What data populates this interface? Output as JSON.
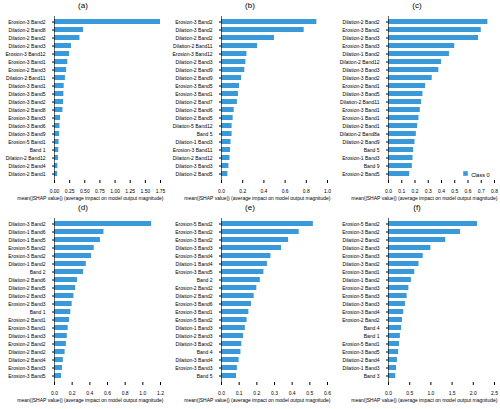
{
  "chart_data": [
    {
      "type": "bar",
      "orientation": "horizontal",
      "title": "(a)",
      "xlabel": "mean(|SHAP value|) (average impact on model output magnitude)",
      "categories": [
        "Erosion-3 Band2",
        "Dilation-2 Band8",
        "Dilation-2 Band2",
        "Dilation-2 Band3",
        "Erosion-3 Band12",
        "Erosion-3 Band1",
        "Erosion-2 Band3",
        "Dilation-2 Band11",
        "Dilation-3 Band1",
        "Dilation-3 Band5",
        "Dilation-3 Band2",
        "Dilation-2 Band8",
        "Erosion-3 Band3",
        "Dilation-3 Band6",
        "Dilation-3 Band9",
        "Erosion-5 Band1",
        "Band 1",
        "Dilation-2 Band12",
        "Dilation-2 Band4",
        "Dilation-2 Band1"
      ],
      "values": [
        1.75,
        0.48,
        0.42,
        0.28,
        0.25,
        0.22,
        0.2,
        0.18,
        0.16,
        0.155,
        0.15,
        0.14,
        0.1,
        0.09,
        0.085,
        0.075,
        0.07,
        0.065,
        0.055,
        0.05
      ],
      "color": "#3a9ad9",
      "xlim": [
        0,
        1.75
      ],
      "xticks": [
        {
          "value": 0,
          "label": "0.00"
        },
        {
          "value": 0.25,
          "label": "0.25"
        },
        {
          "value": 0.5,
          "label": "0.50"
        },
        {
          "value": 0.75,
          "label": "0.75"
        },
        {
          "value": 1,
          "label": "1.00"
        },
        {
          "value": 1.25,
          "label": "1.25"
        },
        {
          "value": 1.5,
          "label": "1.50"
        },
        {
          "value": 1.75,
          "label": "1.75"
        }
      ],
      "grid": false
    },
    {
      "type": "bar",
      "orientation": "horizontal",
      "title": "(b)",
      "xlabel": "mean(|SHAP value|) (average impact on model output magnitude)",
      "categories": [
        "Erosion-3 Band2",
        "Dilation-3 Band2",
        "Dilation-2 Band2",
        "Dilation-2 Band11",
        "Erosion-3 Band12",
        "Dilation-2 Band3",
        "Dilation-2 Band9",
        "Dilation-2 Band9",
        "Erosion-3 Band5",
        "Erosion-3 Band1",
        "Dilation-2 Band7",
        "Dilation-2 Band6",
        "Dilation-2 Band5",
        "Dilation-5 Band12",
        "Band 5",
        "Dilation-1 Band3",
        "Erosion-3 Band11",
        "Dilation-2 Band12",
        "Dilation-3 Band3",
        "Dilation-2 Band5"
      ],
      "values": [
        0.9,
        0.78,
        0.5,
        0.34,
        0.24,
        0.23,
        0.22,
        0.19,
        0.17,
        0.16,
        0.15,
        0.12,
        0.11,
        0.1,
        0.1,
        0.09,
        0.085,
        0.08,
        0.07,
        0.06
      ],
      "color": "#3a9ad9",
      "xlim": [
        0,
        1.0
      ],
      "xticks": [
        {
          "value": 0,
          "label": "0.0"
        },
        {
          "value": 0.2,
          "label": "0.2"
        },
        {
          "value": 0.4,
          "label": "0.4"
        },
        {
          "value": 0.6,
          "label": "0.6"
        },
        {
          "value": 0.8,
          "label": "0.8"
        },
        {
          "value": 1,
          "label": "1.0"
        }
      ],
      "grid": false
    },
    {
      "type": "bar",
      "orientation": "horizontal",
      "title": "(c)",
      "xlabel": "mean(|SHAP value|) (average impact on model output magnitude)",
      "categories": [
        "Dilation-2 Band2",
        "Erosion-3 Band2",
        "Dilation-2 Band3",
        "Erosion-3 Band3",
        "Dilation-1 Band2",
        "Dilation-2 Band12",
        "Dilation-3 Band3",
        "Dilation-3 Band2",
        "Erosion-2 Band1",
        "Dilation-3 Band5",
        "Dilation-2 Band11",
        "Erosion-3 Band1",
        "Erosion-1 Band1",
        "Dilation-2 Band1",
        "Dilation-2 Band8a",
        "Dilation-2 Band9",
        "Band 5",
        "Erosion-1 Band3",
        "Band 9",
        "Erosion-2 Band5"
      ],
      "series": [
        {
          "name": "Class 0",
          "color": "#3a9ad9",
          "values": [
            0.75,
            0.7,
            0.68,
            0.5,
            0.46,
            0.4,
            0.38,
            0.33,
            0.28,
            0.26,
            0.25,
            0.24,
            0.23,
            0.22,
            0.21,
            0.2,
            0.19,
            0.185,
            0.18,
            0.16
          ]
        }
      ],
      "legend": "lower right",
      "xlim": [
        0,
        0.8
      ],
      "xticks": [
        {
          "value": 0,
          "label": "0.0"
        },
        {
          "value": 0.1,
          "label": "0.1"
        },
        {
          "value": 0.2,
          "label": "0.2"
        },
        {
          "value": 0.3,
          "label": "0.3"
        },
        {
          "value": 0.4,
          "label": "0.4"
        },
        {
          "value": 0.5,
          "label": "0.5"
        },
        {
          "value": 0.6,
          "label": "0.6"
        },
        {
          "value": 0.7,
          "label": "0.7"
        },
        {
          "value": 0.8,
          "label": "0.8"
        }
      ],
      "grid": false
    },
    {
      "type": "bar",
      "orientation": "horizontal",
      "title": "(d)",
      "xlabel": "mean(|SHAP value|) (average impact on model output magnitude)",
      "categories": [
        "Dilation-3 Band2",
        "Dilation-1 Band6",
        "Dilation-1 Band5",
        "Erosion-5 Band2",
        "Erosion-3 Band2",
        "Dilation-1 Band2",
        "Band 2",
        "Dilation-2 Band6",
        "Dilation-2 Band5",
        "Dilation-2 Band3",
        "Erosion-2 Band3",
        "Band 1",
        "Erosion-2 Band1",
        "Erosion-3 Band1",
        "Dilation-1 Band3",
        "Erosion-2 Band2",
        "Dilation-2 Band2",
        "Dilation-2 Band4",
        "Erosion-3 Band3",
        "Erosion-3 Band5"
      ],
      "values": [
        1.1,
        0.56,
        0.52,
        0.45,
        0.42,
        0.36,
        0.33,
        0.26,
        0.24,
        0.22,
        0.2,
        0.185,
        0.17,
        0.155,
        0.145,
        0.135,
        0.12,
        0.1,
        0.09,
        0.08
      ],
      "color": "#3a9ad9",
      "xlim": [
        0,
        1.2
      ],
      "xticks": [
        {
          "value": 0,
          "label": "0.0"
        },
        {
          "value": 0.2,
          "label": "0.2"
        },
        {
          "value": 0.4,
          "label": "0.4"
        },
        {
          "value": 0.6,
          "label": "0.6"
        },
        {
          "value": 0.8,
          "label": "0.8"
        },
        {
          "value": 1,
          "label": "1.0"
        },
        {
          "value": 1.2,
          "label": "1.2"
        }
      ],
      "grid": false
    },
    {
      "type": "bar",
      "orientation": "horizontal",
      "title": "(e)",
      "xlabel": "mean(|SHAP value|) (average impact on model output magnitude)",
      "categories": [
        "Erosion-5 Band2",
        "Erosion-3 Band2",
        "Erosion-3 Band2",
        "Dilation-3 Band3",
        "Erosion-3 Band4",
        "Dilation-1 Band4",
        "Erosion-3 Band5",
        "Band 2",
        "Erosion-2 Band2",
        "Dilation-2 Band2",
        "Erosion-3 Band6",
        "Erosion-3 Band1",
        "Erosion-5 Band2",
        "Dilation-1 Band3",
        "Dilation-2 Band3",
        "Dilation-3 Band2",
        "Band 4",
        "Dilation-3 Band4",
        "Erosion-3 Band3",
        "Band 5"
      ],
      "values": [
        0.52,
        0.44,
        0.38,
        0.34,
        0.28,
        0.26,
        0.24,
        0.22,
        0.2,
        0.185,
        0.17,
        0.155,
        0.145,
        0.135,
        0.125,
        0.115,
        0.11,
        0.1,
        0.09,
        0.085
      ],
      "color": "#3a9ad9",
      "xlim": [
        0,
        0.6
      ],
      "xticks": [
        {
          "value": 0,
          "label": "0.0"
        },
        {
          "value": 0.1,
          "label": "0.1"
        },
        {
          "value": 0.2,
          "label": "0.2"
        },
        {
          "value": 0.3,
          "label": "0.3"
        },
        {
          "value": 0.4,
          "label": "0.4"
        },
        {
          "value": 0.5,
          "label": "0.5"
        },
        {
          "value": 0.6,
          "label": "0.6"
        }
      ],
      "grid": false
    },
    {
      "type": "bar",
      "orientation": "horizontal",
      "title": "(f)",
      "xlabel": "mean(|SHAP value|) (average impact on model output magnitude)",
      "categories": [
        "Erosion-5 Band2",
        "Erosion-3 Band2",
        "Dilation-2 Band2",
        "Dilation-2 Band3",
        "Erosion-3 Band3",
        "Dilation-3 Band2",
        "Erosion-3 Band1",
        "Dilation-1 Band2",
        "Erosion-2 Band3",
        "Erosion-5 Band3",
        "Dilation-3 Band3",
        "Erosion-3 Band4",
        "Erosion-2 Band2",
        "Band 4",
        "Band 1",
        "Erosion-5 Band1",
        "Erosion-3 Band5",
        "Dilation-2 Band4",
        "Dilation-1 Band3",
        "Band 3"
      ],
      "values": [
        2.1,
        1.7,
        1.35,
        1.0,
        0.82,
        0.72,
        0.62,
        0.54,
        0.48,
        0.44,
        0.4,
        0.36,
        0.33,
        0.31,
        0.28,
        0.26,
        0.24,
        0.21,
        0.19,
        0.17
      ],
      "color": "#3a9ad9",
      "xlim": [
        0,
        2.5
      ],
      "xticks": [
        {
          "value": 0,
          "label": "0.0"
        },
        {
          "value": 0.5,
          "label": "0.5"
        },
        {
          "value": 1,
          "label": "1.0"
        },
        {
          "value": 1.5,
          "label": "1.5"
        },
        {
          "value": 2,
          "label": "2.0"
        },
        {
          "value": 2.5,
          "label": "2.5"
        }
      ],
      "grid": false
    }
  ]
}
